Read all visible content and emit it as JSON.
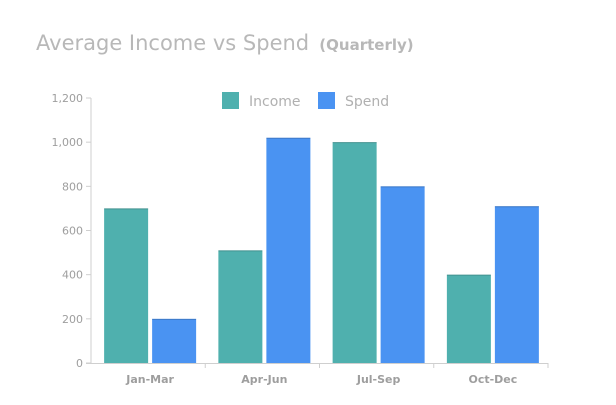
{
  "header": {
    "title": "Average Income vs Spend",
    "subtitle": "(Quarterly)"
  },
  "chart_data": {
    "type": "bar",
    "title": "Average Income vs Spend",
    "subtitle": "(Quarterly)",
    "categories": [
      "Jan-Mar",
      "Apr-Jun",
      "Jul-Sep",
      "Oct-Dec"
    ],
    "series": [
      {
        "name": "Income",
        "color": "#4fb0ae",
        "values": [
          700,
          510,
          1000,
          400
        ]
      },
      {
        "name": "Spend",
        "color": "#4a93f2",
        "values": [
          200,
          1020,
          800,
          710
        ]
      }
    ],
    "ylim": [
      0,
      1200
    ],
    "y_ticks": [
      0,
      200,
      400,
      600,
      800,
      1000,
      1200
    ],
    "y_tick_labels": [
      "0",
      "200",
      "400",
      "600",
      "800",
      "1,000",
      "1,200"
    ],
    "xlabel": "",
    "ylabel": "",
    "grid": false,
    "legend_position": "top-center"
  }
}
